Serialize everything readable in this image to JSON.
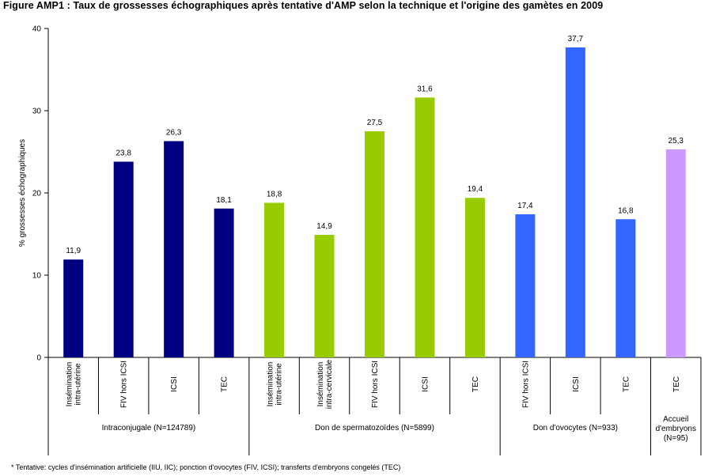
{
  "title": "Figure AMP1 : Taux de grossesses échographiques après tentative d'AMP selon la technique et l'origine des gamètes en 2009",
  "footnote": "* Tentative: cycles d'insémination artificielle (IIU, IIC); ponction d'ovocytes (FIV, ICSI); transferts d'embryons congelés (TEC)",
  "chart_data": {
    "type": "bar",
    "title": "Figure AMP1 : Taux de grossesses échographiques après tentative d'AMP selon la technique et l'origine des gamètes en 2009",
    "ylabel": "% grossesses échographiques",
    "xlabel": "",
    "ylim": [
      0,
      40
    ],
    "yticks": [
      0,
      10,
      20,
      30,
      40
    ],
    "grid": false,
    "legend": "none",
    "groups": [
      {
        "name": "Intraconjugale (N=124789)",
        "color": "#000080",
        "categories": [
          [
            "Insémination",
            "intra-utérine"
          ],
          [
            "FIV hors ICSI"
          ],
          [
            "ICSI"
          ],
          [
            "TEC"
          ]
        ],
        "values": [
          11.9,
          23.8,
          26.3,
          18.1
        ],
        "labels": [
          "11,9",
          "23,8",
          "26,3",
          "18,1"
        ]
      },
      {
        "name": "Don de spermatozoïdes (N=5899)",
        "color": "#99CC00",
        "categories": [
          [
            "Insémination",
            "intra-utérine"
          ],
          [
            "Insémination",
            "intra-cervicale"
          ],
          [
            "FIV hors ICSI"
          ],
          [
            "ICSI"
          ],
          [
            "TEC"
          ]
        ],
        "values": [
          18.8,
          14.9,
          27.5,
          31.6,
          19.4
        ],
        "labels": [
          "18,8",
          "14,9",
          "27,5",
          "31,6",
          "19,4"
        ]
      },
      {
        "name": "Don d'ovocytes (N=933)",
        "color": "#3366FF",
        "categories": [
          [
            "FIV hors ICSI"
          ],
          [
            "ICSI"
          ],
          [
            "TEC"
          ]
        ],
        "values": [
          17.4,
          37.7,
          16.8
        ],
        "labels": [
          "17,4",
          "37,7",
          "16,8"
        ]
      },
      {
        "name": "Accueil d'embryons (N=95)",
        "name_lines": [
          "Accueil",
          "d'embryons",
          "(N=95)"
        ],
        "color": "#CC99FF",
        "categories": [
          [
            "TEC"
          ]
        ],
        "values": [
          25.3
        ],
        "labels": [
          "25,3"
        ]
      }
    ]
  }
}
